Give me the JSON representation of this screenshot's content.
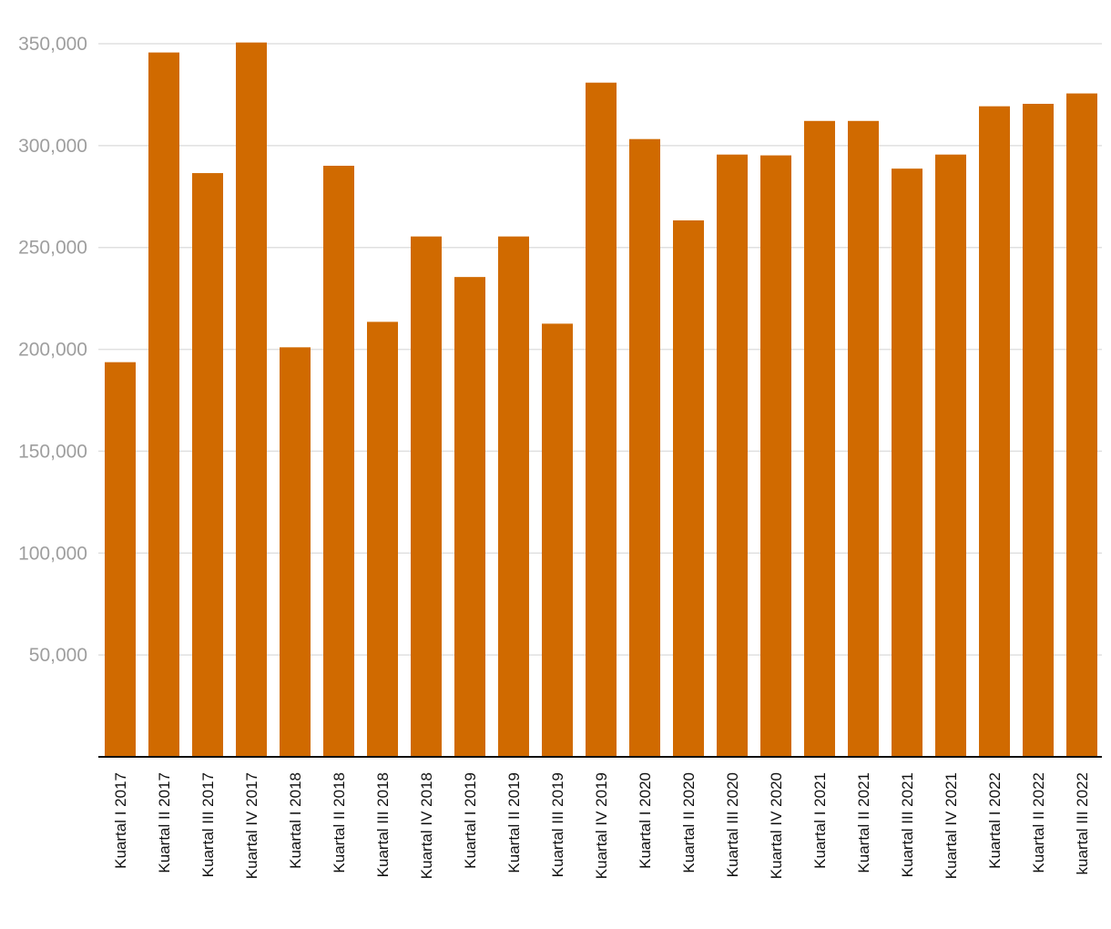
{
  "chart_data": {
    "type": "bar",
    "title": "",
    "xlabel": "",
    "ylabel": "",
    "color": "#d06a00",
    "ylim": [
      0,
      350000
    ],
    "yticks": [
      50000,
      100000,
      150000,
      200000,
      250000,
      300000,
      350000
    ],
    "ytick_labels": [
      "50,000",
      "100,000",
      "150,000",
      "200,000",
      "250,000",
      "300,000",
      "350,000"
    ],
    "grid": true,
    "categories": [
      "Kuartal I 2017",
      "Kuartal II 2017",
      "Kuartal III 2017",
      "Kuartal IV 2017",
      "Kuartal I 2018",
      "Kuartal II 2018",
      "Kuartal III 2018",
      "Kuartal IV 2018",
      "Kuartal I 2019",
      "Kuartal II 2019",
      "Kuartal III 2019",
      "Kuartal IV 2019",
      "Kuartal I 2020",
      "Kuartal II 2020",
      "Kuartal III 2020",
      "Kuartal IV 2020",
      "Kuartal I 2021",
      "Kuartal II 2021",
      "Kuartal III 2021",
      "Kuartal IV 2021",
      "Kuartal I 2022",
      "Kuartal II 2022",
      "kuartal III 2022"
    ],
    "values": [
      193700,
      345700,
      286500,
      350600,
      201000,
      290100,
      213500,
      255400,
      235500,
      255400,
      212600,
      330900,
      303200,
      263300,
      295600,
      295200,
      312100,
      312100,
      288700,
      295600,
      319300,
      320500,
      325600
    ]
  }
}
